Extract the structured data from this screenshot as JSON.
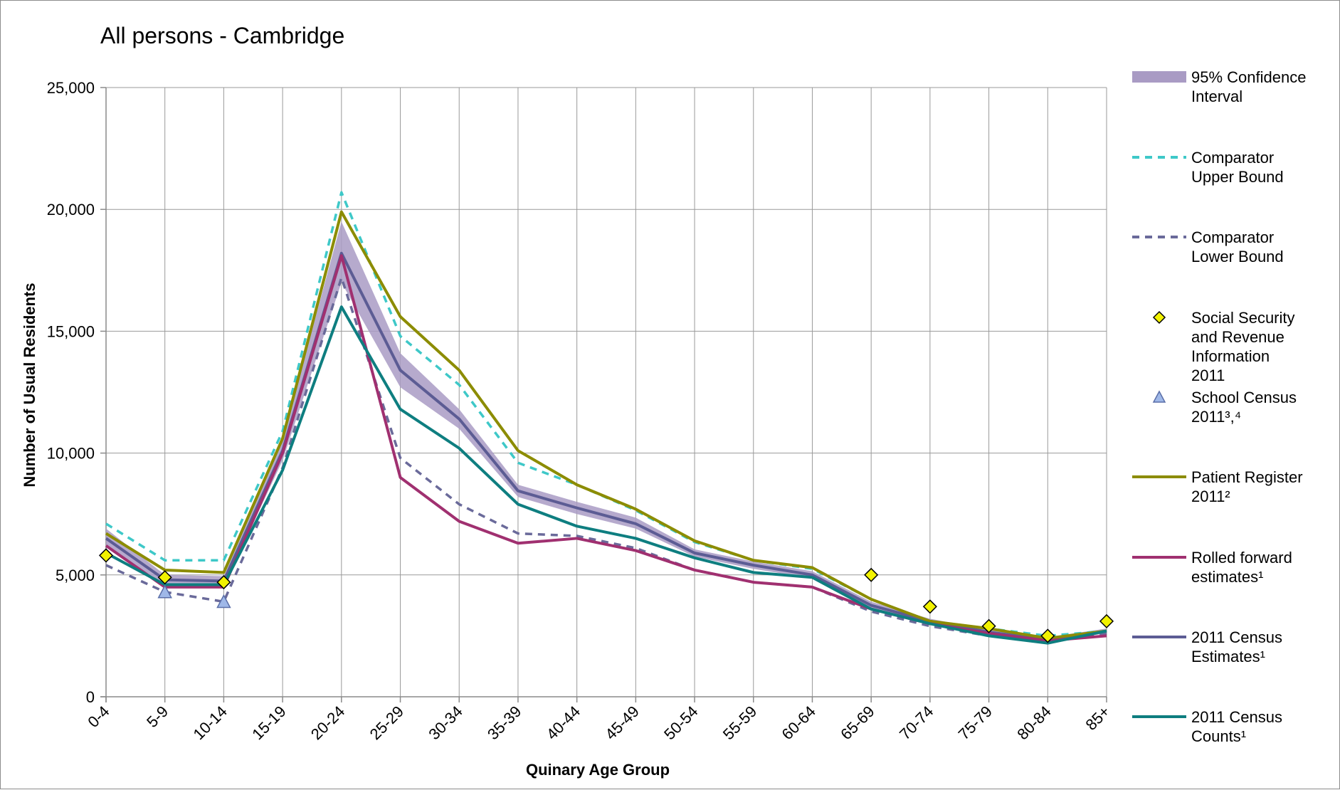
{
  "chart_data": {
    "type": "line",
    "title": "All persons - Cambridge",
    "xlabel": "Quinary Age Group",
    "ylabel": "Number of Usual Residents",
    "ylim": [
      0,
      25000
    ],
    "yticks": [
      0,
      5000,
      10000,
      15000,
      20000,
      25000
    ],
    "ytick_labels": [
      "0",
      "5,000",
      "10,000",
      "15,000",
      "20,000",
      "25,000"
    ],
    "grid": true,
    "legend_position": "right",
    "categories": [
      "0-4",
      "5-9",
      "10-14",
      "15-19",
      "20-24",
      "25-29",
      "30-34",
      "35-39",
      "40-44",
      "45-49",
      "50-54",
      "55-59",
      "60-64",
      "65-69",
      "70-74",
      "75-79",
      "80-84",
      "85+"
    ],
    "confidence_interval": {
      "name": "95% Confidence Interval",
      "color": "#a99bc4",
      "lower": [
        6200,
        4600,
        4550,
        9700,
        17000,
        12700,
        11000,
        8200,
        7500,
        6900,
        5750,
        5250,
        4850,
        3600,
        3000,
        2550,
        2300,
        2600
      ],
      "upper": [
        6900,
        5000,
        4950,
        10600,
        19500,
        14100,
        11800,
        8700,
        8000,
        7350,
        6050,
        5550,
        5150,
        3900,
        3200,
        2750,
        2450,
        2800
      ]
    },
    "series": [
      {
        "name": "Comparator Upper Bound",
        "style": "dashed",
        "color": "#3ec8c8",
        "values": [
          7100,
          5600,
          5600,
          10900,
          20700,
          14800,
          12800,
          9600,
          8700,
          7650,
          6350,
          5600,
          5250,
          4000,
          3100,
          2800,
          2500,
          2700
        ]
      },
      {
        "name": "Comparator Lower Bound",
        "style": "dashed",
        "color": "#6a6a9a",
        "values": [
          5400,
          4300,
          3900,
          9400,
          17200,
          9800,
          7900,
          6700,
          6600,
          6100,
          5200,
          4700,
          4500,
          3500,
          2900,
          2500,
          2300,
          2600
        ]
      },
      {
        "name": "Patient Register 2011²",
        "style": "solid",
        "color": "#8c8c00",
        "values": [
          6700,
          5200,
          5100,
          10600,
          19900,
          15600,
          13400,
          10100,
          8700,
          7700,
          6400,
          5600,
          5300,
          4000,
          3100,
          2800,
          2400,
          2700
        ]
      },
      {
        "name": "Rolled forward estimates¹",
        "style": "solid",
        "color": "#a03070",
        "values": [
          6200,
          4500,
          4500,
          10000,
          18100,
          9000,
          7200,
          6300,
          6500,
          6000,
          5200,
          4700,
          4500,
          3600,
          3000,
          2600,
          2300,
          2500
        ]
      },
      {
        "name": "2011 Census Estimates¹",
        "style": "solid",
        "color": "#5c5c94",
        "values": [
          6500,
          4800,
          4750,
          10100,
          18200,
          13400,
          11400,
          8450,
          7750,
          7100,
          5900,
          5400,
          5000,
          3750,
          3100,
          2650,
          2350,
          2700
        ]
      },
      {
        "name": "2011 Census Counts¹",
        "style": "solid",
        "color": "#0e7e80",
        "values": [
          5900,
          4600,
          4600,
          9300,
          16000,
          11800,
          10200,
          7900,
          7000,
          6500,
          5700,
          5100,
          4900,
          3600,
          3000,
          2500,
          2200,
          2700
        ]
      }
    ],
    "markers": [
      {
        "name": "Social Security and Revenue Information 2011",
        "shape": "diamond",
        "color": "#f2f200",
        "values": [
          5800,
          4900,
          4700,
          null,
          null,
          null,
          null,
          null,
          null,
          null,
          null,
          null,
          null,
          5000,
          3700,
          2900,
          2500,
          3100
        ]
      },
      {
        "name": "School Census 2011³,⁴",
        "shape": "triangle",
        "color": "#9fb8e8",
        "values": [
          null,
          4300,
          3900,
          null,
          null,
          null,
          null,
          null,
          null,
          null,
          null,
          null,
          null,
          null,
          null,
          null,
          null,
          null
        ]
      }
    ],
    "legend": [
      [
        "95% Confidence",
        "Interval"
      ],
      [
        "Comparator",
        "Upper Bound"
      ],
      [
        "Comparator",
        "Lower Bound"
      ],
      [
        "Social Security",
        "and Revenue",
        "Information",
        "2011"
      ],
      [
        "School Census",
        "2011³,⁴"
      ],
      [
        "Patient Register",
        "2011²"
      ],
      [
        "Rolled forward",
        "estimates¹"
      ],
      [
        "2011 Census",
        "Estimates¹"
      ],
      [
        "2011 Census",
        "Counts¹"
      ]
    ]
  }
}
